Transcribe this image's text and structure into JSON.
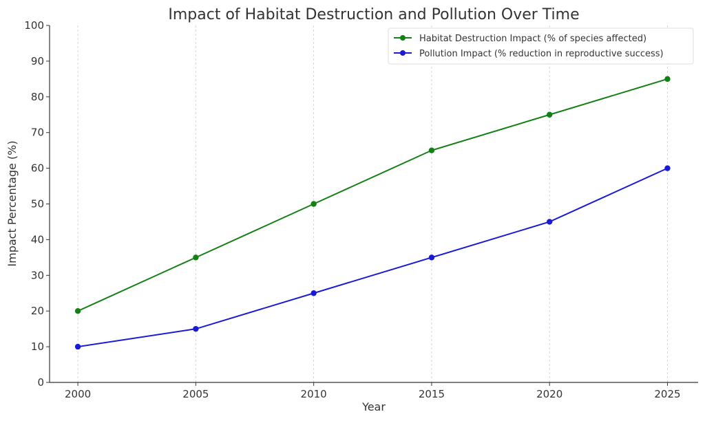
{
  "chart_data": {
    "type": "line",
    "title": "Impact of Habitat Destruction and Pollution Over Time",
    "xlabel": "Year",
    "ylabel": "Impact Percentage (%)",
    "x": [
      2000,
      2005,
      2010,
      2015,
      2020,
      2025
    ],
    "x_tick_labels": [
      "2000",
      "2005",
      "2010",
      "2015",
      "2020",
      "2025"
    ],
    "xlim": [
      1998.8,
      2026.3
    ],
    "ylim": [
      0,
      100
    ],
    "y_ticks": [
      0,
      10,
      20,
      30,
      40,
      50,
      60,
      70,
      80,
      90,
      100
    ],
    "y_tick_labels": [
      "0",
      "10",
      "20",
      "30",
      "40",
      "50",
      "60",
      "70",
      "80",
      "90",
      "100"
    ],
    "grid": "vertical-dashed",
    "legend_position": "top-right",
    "series": [
      {
        "name": "Habitat Destruction Impact (% of species affected)",
        "color": "#138013",
        "marker": "circle",
        "values": [
          20,
          35,
          50,
          65,
          75,
          85
        ]
      },
      {
        "name": "Pollution Impact (% reduction in reproductive success)",
        "color": "#1a1ad6",
        "marker": "circle",
        "values": [
          10,
          15,
          25,
          35,
          45,
          60
        ]
      }
    ]
  }
}
